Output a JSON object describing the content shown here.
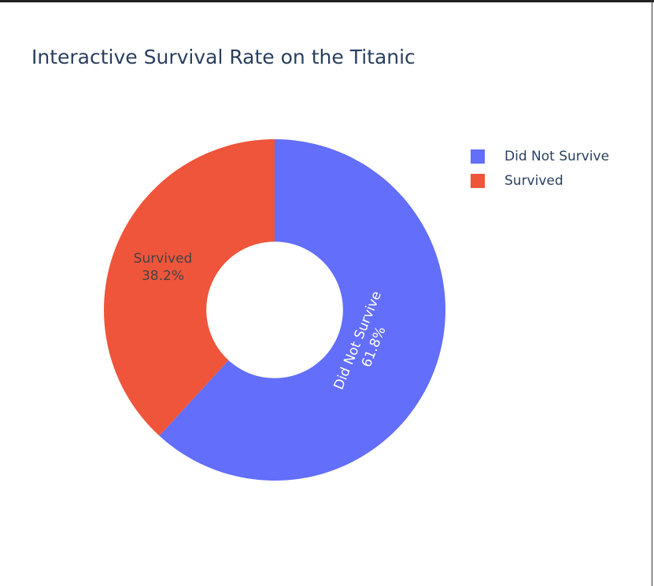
{
  "chart_data": {
    "type": "pie",
    "title": "Interactive Survival Rate on the Titanic",
    "hole": 0.4,
    "labels": [
      "Did Not Survive",
      "Survived"
    ],
    "values": [
      61.8,
      38.2
    ],
    "text": [
      "61.8%",
      "38.2%"
    ],
    "colors": [
      "#636efa",
      "#ef553b"
    ],
    "text_colors": [
      "#ffffff",
      "#444444"
    ],
    "direction": "clockwise",
    "legend_position": "top-right"
  }
}
